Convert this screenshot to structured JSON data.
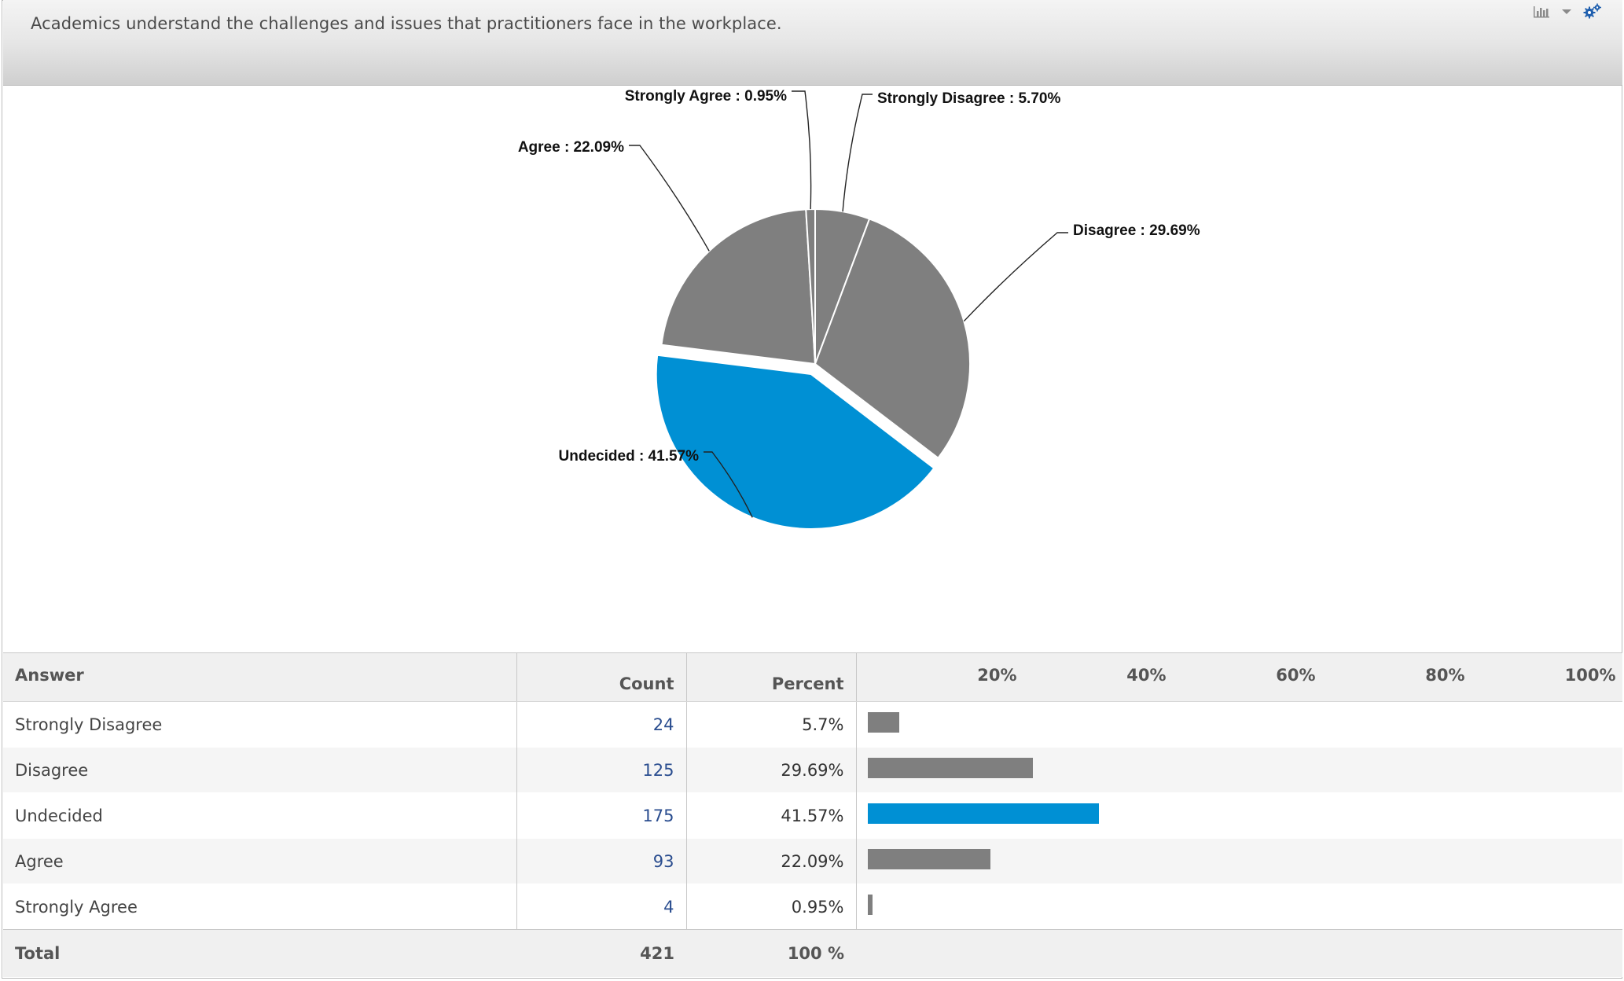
{
  "header": {
    "title": "Academics understand the challenges and issues that practitioners face in the workplace.",
    "chart_type_icon": "bar-chart-icon",
    "settings_icon": "gear-icon"
  },
  "colors": {
    "slice": "#7f7f7f",
    "highlight": "#0090d4"
  },
  "chart_data": {
    "type": "pie",
    "slices": [
      {
        "label": "Strongly Disagree",
        "value": 5.7,
        "display": "Strongly Disagree : 5.70%",
        "highlight": false
      },
      {
        "label": "Disagree",
        "value": 29.69,
        "display": "Disagree : 29.69%",
        "highlight": false
      },
      {
        "label": "Undecided",
        "value": 41.57,
        "display": "Undecided : 41.57%",
        "highlight": true
      },
      {
        "label": "Agree",
        "value": 22.09,
        "display": "Agree : 22.09%",
        "highlight": false
      },
      {
        "label": "Strongly Agree",
        "value": 0.95,
        "display": "Strongly Agree : 0.95%",
        "highlight": false
      }
    ]
  },
  "table": {
    "headers": {
      "answer": "Answer",
      "count": "Count",
      "percent": "Percent"
    },
    "axis_ticks": [
      "20%",
      "40%",
      "60%",
      "80%",
      "100%"
    ],
    "rows": [
      {
        "answer": "Strongly Disagree",
        "count": "24",
        "percent": "5.7%",
        "value": 5.7,
        "highlight": false
      },
      {
        "answer": "Disagree",
        "count": "125",
        "percent": "29.69%",
        "value": 29.69,
        "highlight": false
      },
      {
        "answer": "Undecided",
        "count": "175",
        "percent": "41.57%",
        "value": 41.57,
        "highlight": true
      },
      {
        "answer": "Agree",
        "count": "93",
        "percent": "22.09%",
        "value": 22.09,
        "highlight": false
      },
      {
        "answer": "Strongly Agree",
        "count": "4",
        "percent": "0.95%",
        "value": 0.95,
        "highlight": false
      }
    ],
    "total": {
      "label": "Total",
      "count": "421",
      "percent": "100 %"
    }
  }
}
